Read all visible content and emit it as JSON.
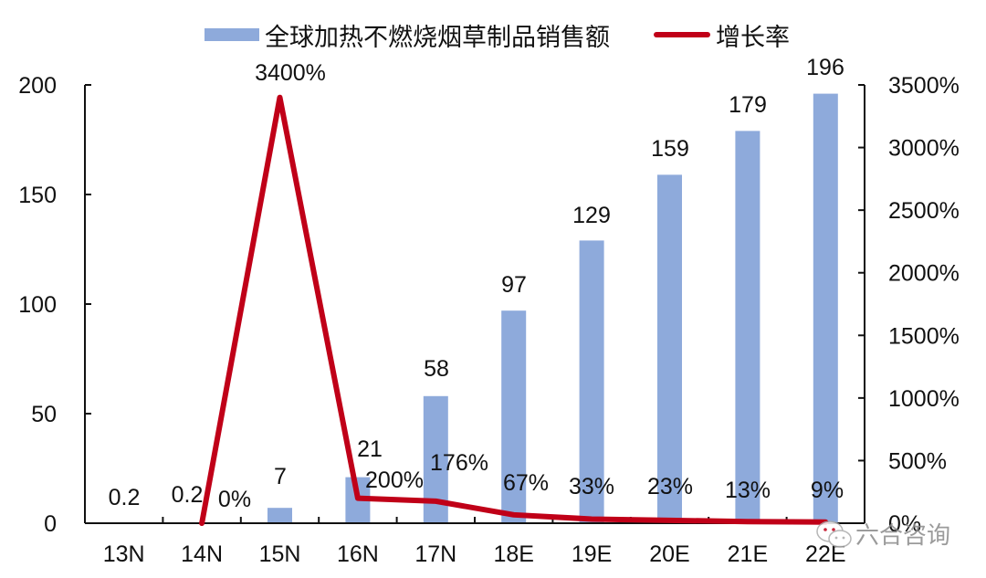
{
  "chart_data": {
    "type": "bar",
    "title": "",
    "xlabel": "",
    "ylabel": "",
    "categories": [
      "13N",
      "14N",
      "15N",
      "16N",
      "17N",
      "18E",
      "19E",
      "20E",
      "21E",
      "22E"
    ],
    "series": [
      {
        "name": "全球加热不燃烧烟草制品销售额",
        "type": "bar",
        "axis": "left",
        "color": "#8eaadb",
        "values": [
          0.2,
          0.2,
          7,
          21,
          58,
          97,
          129,
          159,
          179,
          196
        ],
        "labels": [
          "0.2",
          "0.2",
          "7",
          "21",
          "58",
          "97",
          "129",
          "159",
          "179",
          "196"
        ]
      },
      {
        "name": "增长率",
        "type": "line",
        "axis": "right",
        "color": "#c00018",
        "values": [
          null,
          0,
          3400,
          200,
          176,
          67,
          33,
          23,
          13,
          9
        ],
        "labels": [
          "",
          "0%",
          "3400%",
          "200%",
          "176%",
          "67%",
          "33%",
          "23%",
          "13%",
          "9%"
        ]
      }
    ],
    "left_axis": {
      "ylim": [
        0,
        200
      ],
      "ticks": [
        "0",
        "50",
        "100",
        "150",
        "200"
      ]
    },
    "right_axis": {
      "ylim": [
        0,
        3500
      ],
      "ticks": [
        "0%",
        "500%",
        "1000%",
        "1500%",
        "2000%",
        "2500%",
        "3000%",
        "3500%"
      ]
    },
    "grid": false,
    "legend_position": "top"
  },
  "legend": {
    "bar_label": "全球加热不燃烧烟草制品销售额",
    "line_label": "增长率"
  },
  "watermark": {
    "text": "六合咨询"
  }
}
